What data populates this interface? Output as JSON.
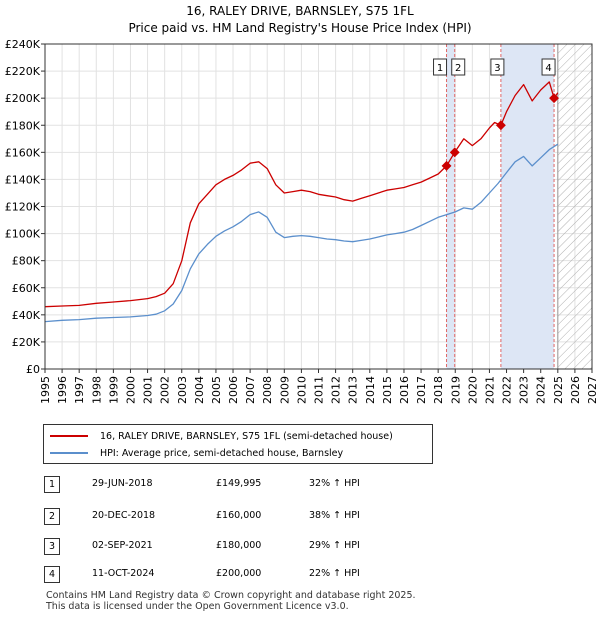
{
  "title_line1": "16, RALEY DRIVE, BARNSLEY, S75 1FL",
  "title_line2": "Price paid vs. HM Land Registry's House Price Index (HPI)",
  "chart_data": {
    "type": "line",
    "xlim": [
      1995,
      2027
    ],
    "ylim": [
      0,
      240000
    ],
    "x_ticks": [
      1995,
      1996,
      1997,
      1998,
      1999,
      2000,
      2001,
      2002,
      2003,
      2004,
      2005,
      2006,
      2007,
      2008,
      2009,
      2010,
      2011,
      2012,
      2013,
      2014,
      2015,
      2016,
      2017,
      2018,
      2019,
      2020,
      2021,
      2022,
      2023,
      2024,
      2025,
      2026,
      2027
    ],
    "y_ticks": [
      0,
      20000,
      40000,
      60000,
      80000,
      100000,
      120000,
      140000,
      160000,
      180000,
      200000,
      220000,
      240000
    ],
    "y_tick_labels": [
      "£0",
      "£20K",
      "£40K",
      "£60K",
      "£80K",
      "£100K",
      "£120K",
      "£140K",
      "£160K",
      "£180K",
      "£200K",
      "£220K",
      "£240K"
    ],
    "grid": true,
    "shaded_ranges": [
      [
        2018.49,
        2018.97
      ],
      [
        2021.67,
        2024.78
      ]
    ],
    "hatched_future_from": 2025.0,
    "colors": {
      "property": "#cc0000",
      "hpi": "#5b8fcc",
      "marker_line": "#e06666",
      "shade": "#dde6f5"
    },
    "series": [
      {
        "name": "16, RALEY DRIVE, BARNSLEY, S75 1FL (semi-detached house)",
        "x": [
          1995.0,
          1996.0,
          1997.0,
          1998.0,
          1999.0,
          2000.0,
          2001.0,
          2001.5,
          2002.0,
          2002.5,
          2003.0,
          2003.5,
          2004.0,
          2004.5,
          2005.0,
          2005.5,
          2006.0,
          2006.5,
          2007.0,
          2007.5,
          2008.0,
          2008.5,
          2009.0,
          2009.5,
          2010.0,
          2010.5,
          2011.0,
          2011.5,
          2012.0,
          2012.5,
          2013.0,
          2013.5,
          2014.0,
          2014.5,
          2015.0,
          2015.5,
          2016.0,
          2016.5,
          2017.0,
          2017.5,
          2018.0,
          2018.49,
          2018.97,
          2019.5,
          2020.0,
          2020.5,
          2021.0,
          2021.3,
          2021.67,
          2022.0,
          2022.5,
          2023.0,
          2023.5,
          2024.0,
          2024.5,
          2024.78,
          2025.0
        ],
        "values": [
          46000,
          46500,
          47000,
          48500,
          49500,
          50500,
          52000,
          53500,
          56000,
          63000,
          80000,
          108000,
          122000,
          129000,
          136000,
          140000,
          143000,
          147000,
          152000,
          153000,
          148000,
          136000,
          130000,
          131000,
          132000,
          131000,
          129000,
          128000,
          127000,
          125000,
          124000,
          126000,
          128000,
          130000,
          132000,
          133000,
          134000,
          136000,
          138000,
          141000,
          144000,
          149995,
          160000,
          170000,
          165000,
          170000,
          178000,
          182000,
          180000,
          190000,
          202000,
          210000,
          198000,
          206000,
          212000,
          200000,
          204000
        ]
      },
      {
        "name": "HPI: Average price, semi-detached house, Barnsley",
        "x": [
          1995.0,
          1996.0,
          1997.0,
          1998.0,
          1999.0,
          2000.0,
          2001.0,
          2001.5,
          2002.0,
          2002.5,
          2003.0,
          2003.5,
          2004.0,
          2004.5,
          2005.0,
          2005.5,
          2006.0,
          2006.5,
          2007.0,
          2007.5,
          2008.0,
          2008.5,
          2009.0,
          2009.5,
          2010.0,
          2010.5,
          2011.0,
          2011.5,
          2012.0,
          2012.5,
          2013.0,
          2013.5,
          2014.0,
          2014.5,
          2015.0,
          2015.5,
          2016.0,
          2016.5,
          2017.0,
          2017.5,
          2018.0,
          2018.5,
          2019.0,
          2019.5,
          2020.0,
          2020.5,
          2021.0,
          2021.5,
          2022.0,
          2022.5,
          2023.0,
          2023.5,
          2024.0,
          2024.5,
          2025.0
        ],
        "values": [
          35000,
          36000,
          36500,
          37500,
          38000,
          38500,
          39500,
          40500,
          43000,
          48000,
          58000,
          74000,
          85000,
          92000,
          98000,
          102000,
          105000,
          109000,
          114000,
          116000,
          112000,
          101000,
          97000,
          98000,
          98500,
          98000,
          97000,
          96000,
          95500,
          94500,
          94000,
          95000,
          96000,
          97500,
          99000,
          100000,
          101000,
          103000,
          106000,
          109000,
          112000,
          114000,
          116000,
          119000,
          118000,
          123000,
          130000,
          137000,
          145000,
          153000,
          157000,
          150000,
          156000,
          162000,
          166000
        ]
      }
    ],
    "transactions": [
      {
        "num": "1",
        "x": 2018.49,
        "value": 149995
      },
      {
        "num": "2",
        "x": 2018.97,
        "value": 160000
      },
      {
        "num": "3",
        "x": 2021.67,
        "value": 180000
      },
      {
        "num": "4",
        "x": 2024.78,
        "value": 200000
      }
    ]
  },
  "legend": {
    "property_label": "16, RALEY DRIVE, BARNSLEY, S75 1FL (semi-detached house)",
    "hpi_label": "HPI: Average price, semi-detached house, Barnsley"
  },
  "table": [
    {
      "num": "1",
      "date": "29-JUN-2018",
      "price": "£149,995",
      "hpi": "32% ↑ HPI"
    },
    {
      "num": "2",
      "date": "20-DEC-2018",
      "price": "£160,000",
      "hpi": "38% ↑ HPI"
    },
    {
      "num": "3",
      "date": "02-SEP-2021",
      "price": "£180,000",
      "hpi": "29% ↑ HPI"
    },
    {
      "num": "4",
      "date": "11-OCT-2024",
      "price": "£200,000",
      "hpi": "22% ↑ HPI"
    }
  ],
  "footer_line1": "Contains HM Land Registry data © Crown copyright and database right 2025.",
  "footer_line2": "This data is licensed under the Open Government Licence v3.0."
}
